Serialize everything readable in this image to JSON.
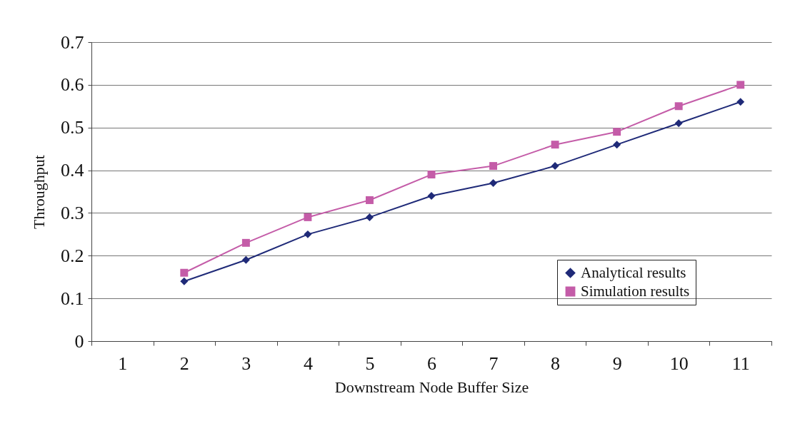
{
  "chart_data": {
    "type": "line",
    "xlabel": "Downstream Node Buffer Size",
    "ylabel": "Throughput",
    "categories": [
      "1",
      "2",
      "3",
      "4",
      "5",
      "6",
      "7",
      "8",
      "9",
      "10",
      "11"
    ],
    "series": [
      {
        "name": "Analytical results",
        "color": "#1f2a78",
        "marker": "diamond",
        "values": [
          null,
          0.14,
          0.19,
          0.25,
          0.29,
          0.34,
          0.37,
          0.41,
          0.46,
          0.51,
          0.56
        ]
      },
      {
        "name": "Simulation results",
        "color": "#c45ca8",
        "marker": "square",
        "values": [
          null,
          0.16,
          0.23,
          0.29,
          0.33,
          0.39,
          0.41,
          0.46,
          0.49,
          0.55,
          0.6
        ]
      }
    ],
    "ylim": [
      0,
      0.7
    ],
    "yticks": [
      0,
      0.1,
      0.2,
      0.3,
      0.4,
      0.5,
      0.6,
      0.7
    ],
    "grid": "y",
    "legend": "bottom right"
  }
}
